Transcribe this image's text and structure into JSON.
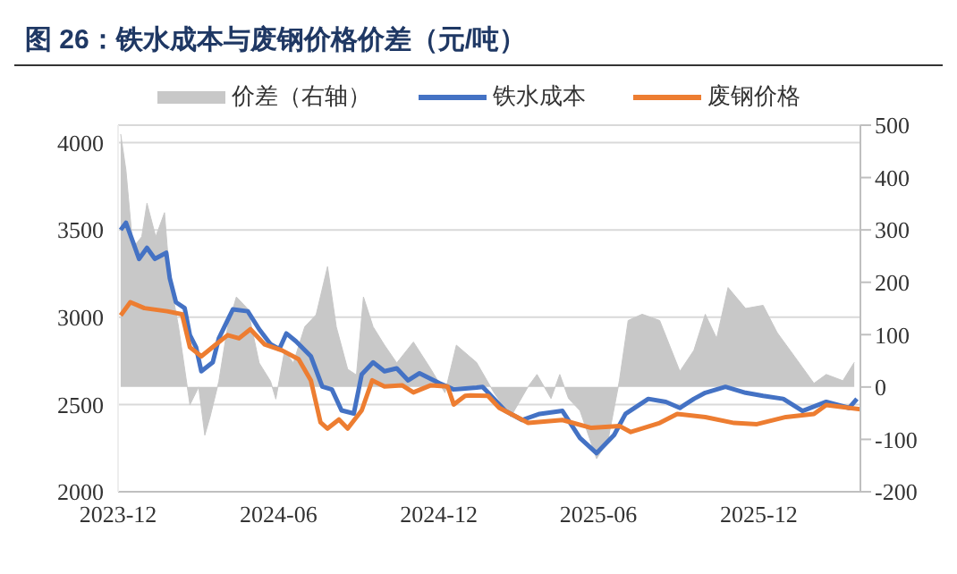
{
  "chart_data": {
    "type": "line",
    "title": "图 26：铁水成本与废钢价格价差（元/吨）",
    "legend": "top",
    "grid": "y",
    "marker": "none",
    "line_style": "solid",
    "xlim": [
      "2023-12-01",
      "2026-03-27"
    ],
    "xticks": [
      "2023-12",
      "2024-06",
      "2024-12",
      "2025-06",
      "2025-12"
    ],
    "ylim": [
      2000,
      4100
    ],
    "yticks": [
      2000,
      2500,
      3000,
      3500,
      4000
    ],
    "y2lim": [
      -200,
      500
    ],
    "y2ticks": [
      -200,
      -100,
      0,
      100,
      200,
      300,
      400,
      500
    ],
    "series": [
      {
        "name": "价差（右轴）",
        "type": "area",
        "axis": "y2",
        "color": "#c8c8c8",
        "x": [
          "2023-12-04",
          "2023-12-10",
          "2023-12-18",
          "2023-12-28",
          "2024-01-03",
          "2024-01-13",
          "2024-01-23",
          "2024-01-29",
          "2024-02-08",
          "2024-02-18",
          "2024-02-21",
          "2024-03-02",
          "2024-03-09",
          "2024-03-15",
          "2024-03-25",
          "2024-04-04",
          "2024-04-14",
          "2024-04-27",
          "2024-05-10",
          "2024-05-23",
          "2024-05-29",
          "2024-06-08",
          "2024-06-18",
          "2024-07-01",
          "2024-07-14",
          "2024-07-27",
          "2024-08-06",
          "2024-08-19",
          "2024-08-29",
          "2024-09-06",
          "2024-09-17",
          "2024-09-30",
          "2024-10-14",
          "2024-11-02",
          "2024-11-22",
          "2024-12-08",
          "2024-12-21",
          "2025-01-06",
          "2025-01-13",
          "2025-02-02",
          "2025-02-21",
          "2025-03-13",
          "2025-03-23",
          "2025-04-08",
          "2025-04-18",
          "2025-04-28",
          "2025-05-11",
          "2025-05-30",
          "2025-06-12",
          "2025-06-25",
          "2025-07-05",
          "2025-07-21",
          "2025-08-10",
          "2025-09-02",
          "2025-09-18",
          "2025-10-01",
          "2025-10-14",
          "2025-10-27",
          "2025-11-16",
          "2025-12-06",
          "2025-12-22",
          "2026-01-11",
          "2026-02-02",
          "2026-02-16",
          "2026-03-07",
          "2026-03-20"
        ],
        "values": [
          483,
          414,
          266,
          287,
          351,
          287,
          333,
          207,
          115,
          0,
          -34,
          0,
          -92,
          -57,
          11,
          115,
          172,
          149,
          46,
          11,
          -23,
          69,
          46,
          115,
          138,
          230,
          115,
          34,
          23,
          172,
          115,
          80,
          46,
          86,
          34,
          -11,
          80,
          57,
          47,
          -11,
          -57,
          1,
          24,
          -22,
          24,
          -22,
          -45,
          -137,
          -102,
          12,
          127,
          139,
          127,
          30,
          70,
          139,
          93,
          190,
          150,
          156,
          104,
          58,
          7,
          24,
          12,
          47
        ]
      },
      {
        "name": "铁水成本",
        "color": "#4472c4",
        "x": [
          "2023-12-04",
          "2023-12-10",
          "2023-12-18",
          "2023-12-25",
          "2024-01-03",
          "2024-01-12",
          "2024-01-25",
          "2024-01-29",
          "2024-02-05",
          "2024-02-15",
          "2024-02-21",
          "2024-02-28",
          "2024-03-05",
          "2024-03-18",
          "2024-03-25",
          "2024-04-10",
          "2024-04-27",
          "2024-05-10",
          "2024-05-23",
          "2024-06-02",
          "2024-06-10",
          "2024-06-21",
          "2024-07-08",
          "2024-07-21",
          "2024-08-01",
          "2024-08-12",
          "2024-08-26",
          "2024-09-04",
          "2024-09-17",
          "2024-09-30",
          "2024-10-14",
          "2024-10-27",
          "2024-11-09",
          "2024-12-02",
          "2024-12-18",
          "2025-01-13",
          "2025-01-20",
          "2025-02-02",
          "2025-02-15",
          "2025-03-06",
          "2025-03-26",
          "2025-04-21",
          "2025-05-11",
          "2025-05-30",
          "2025-06-19",
          "2025-07-02",
          "2025-07-28",
          "2025-08-17",
          "2025-09-02",
          "2025-09-18",
          "2025-10-01",
          "2025-10-24",
          "2025-11-16",
          "2025-12-06",
          "2025-12-29",
          "2026-01-20",
          "2026-02-16",
          "2026-03-14",
          "2026-03-23"
        ],
        "values": [
          3500,
          3541,
          3431,
          3334,
          3397,
          3334,
          3369,
          3224,
          3086,
          3052,
          2897,
          2828,
          2690,
          2741,
          2879,
          3045,
          3034,
          2931,
          2845,
          2817,
          2907,
          2862,
          2776,
          2603,
          2586,
          2466,
          2448,
          2672,
          2741,
          2690,
          2707,
          2638,
          2679,
          2621,
          2586,
          2597,
          2601,
          2532,
          2463,
          2411,
          2446,
          2463,
          2308,
          2221,
          2325,
          2446,
          2532,
          2515,
          2480,
          2532,
          2567,
          2601,
          2567,
          2549,
          2532,
          2463,
          2515,
          2480,
          2532
        ]
      },
      {
        "name": "废钢价格",
        "color": "#ed7d31",
        "x": [
          "2023-12-04",
          "2023-12-15",
          "2023-12-31",
          "2024-01-26",
          "2024-02-12",
          "2024-02-21",
          "2024-03-05",
          "2024-03-22",
          "2024-04-04",
          "2024-04-17",
          "2024-04-30",
          "2024-05-16",
          "2024-06-05",
          "2024-06-24",
          "2024-07-08",
          "2024-07-19",
          "2024-07-27",
          "2024-08-09",
          "2024-08-19",
          "2024-09-04",
          "2024-09-16",
          "2024-09-30",
          "2024-10-20",
          "2024-11-02",
          "2024-11-22",
          "2024-12-11",
          "2024-12-18",
          "2024-12-31",
          "2025-01-06",
          "2025-01-26",
          "2025-02-08",
          "2025-03-13",
          "2025-04-21",
          "2025-05-24",
          "2025-06-25",
          "2025-07-08",
          "2025-08-10",
          "2025-08-30",
          "2025-10-01",
          "2025-11-03",
          "2025-11-29",
          "2026-01-01",
          "2026-02-02",
          "2026-02-16",
          "2026-03-27"
        ],
        "values": [
          3010,
          3086,
          3052,
          3034,
          3017,
          2828,
          2776,
          2845,
          2897,
          2879,
          2931,
          2845,
          2810,
          2759,
          2638,
          2397,
          2362,
          2414,
          2362,
          2466,
          2638,
          2603,
          2610,
          2569,
          2610,
          2603,
          2500,
          2549,
          2552,
          2549,
          2480,
          2394,
          2411,
          2366,
          2377,
          2342,
          2394,
          2446,
          2428,
          2394,
          2387,
          2428,
          2446,
          2497,
          2473
        ]
      }
    ]
  }
}
